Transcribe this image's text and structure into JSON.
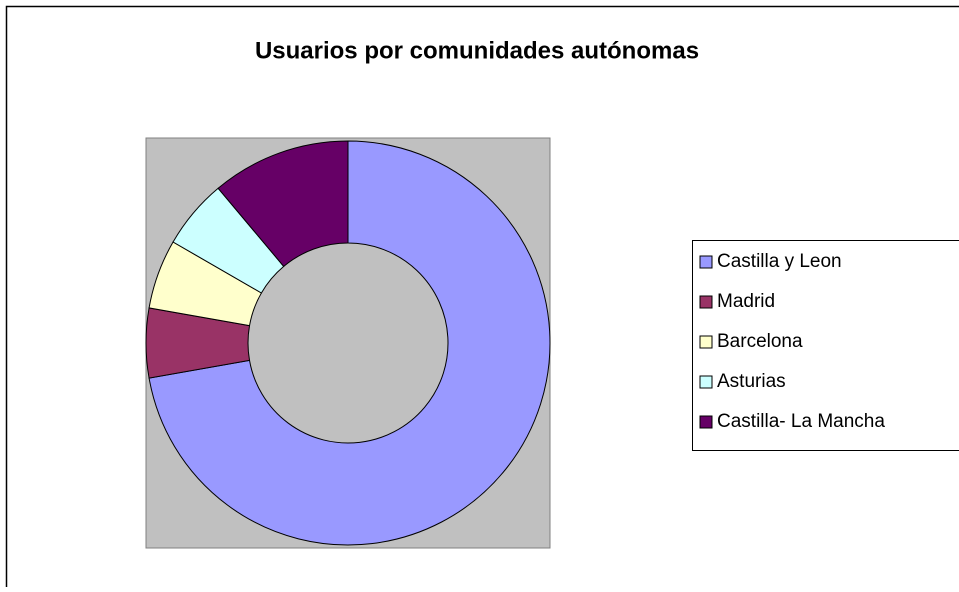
{
  "chart_data": {
    "type": "donut",
    "title": "Usuarios por comunidades autónomas",
    "categories": [
      "Castilla y Leon",
      "Madrid",
      "Barcelona",
      "Asturias",
      "Castilla- La Mancha"
    ],
    "values": [
      13,
      1,
      1,
      1,
      2
    ],
    "colors": [
      "#9999ff",
      "#993366",
      "#ffffcc",
      "#ccffff",
      "#660066"
    ],
    "legend": "right"
  }
}
